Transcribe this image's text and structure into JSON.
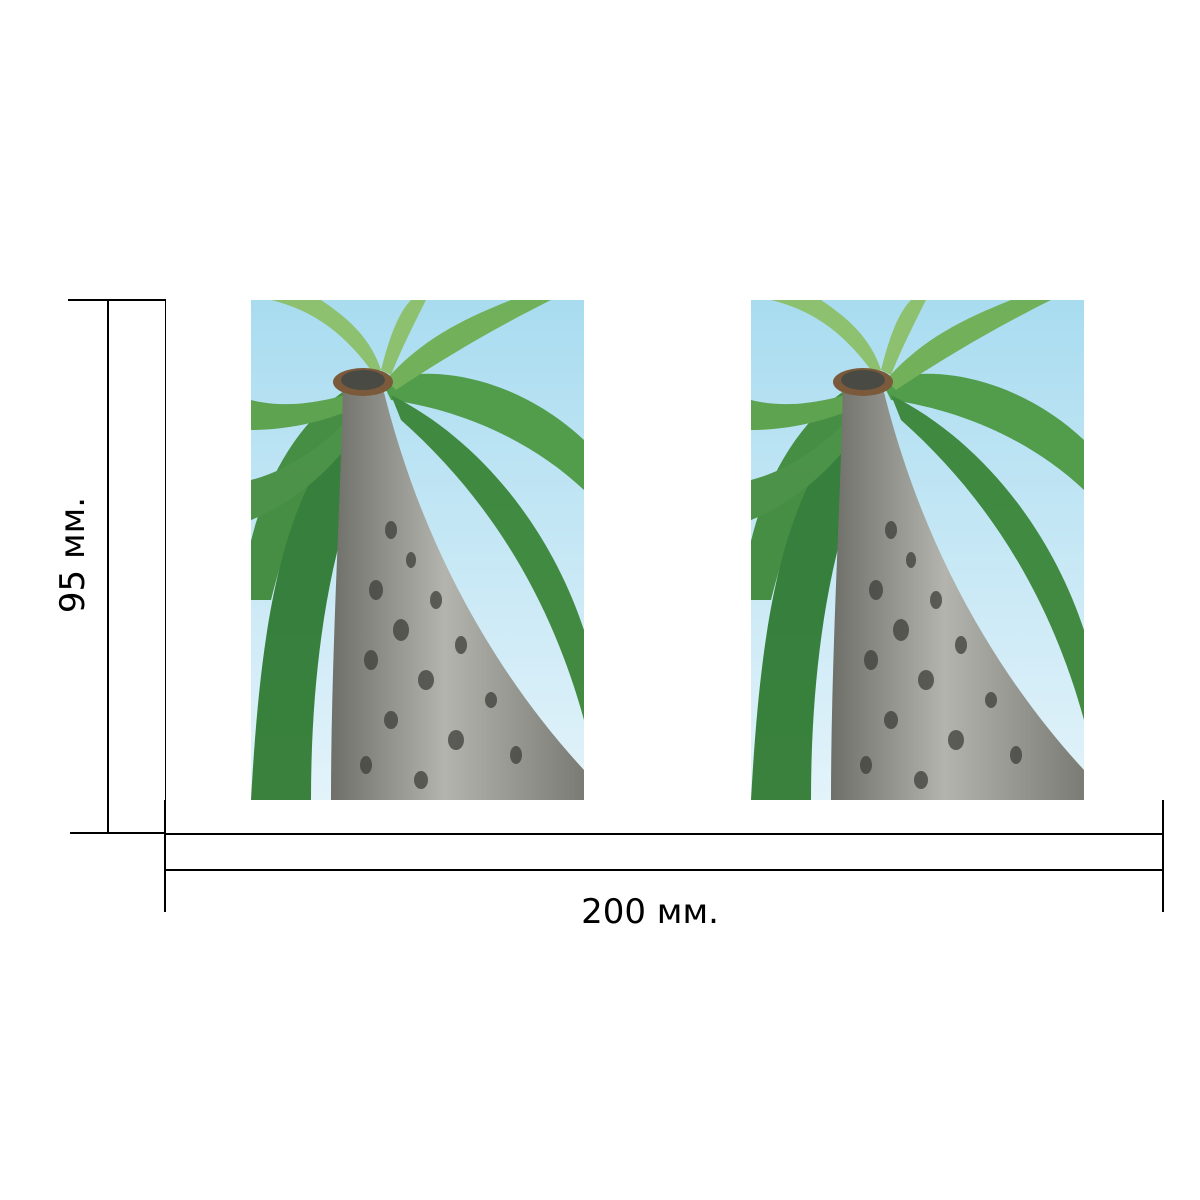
{
  "dimensions": {
    "height_label": "95 мм.",
    "width_label": "200 мм."
  },
  "photos": [
    {
      "subject": "palm-tree",
      "description_icon": "palm-tree-photo"
    },
    {
      "subject": "palm-tree",
      "description_icon": "palm-tree-photo"
    }
  ],
  "colors": {
    "sky": "#bfe3f2",
    "frond": "#3f8a3a",
    "frond_light": "#8cc06a",
    "trunk": "#9a9a94",
    "line": "#000000"
  }
}
